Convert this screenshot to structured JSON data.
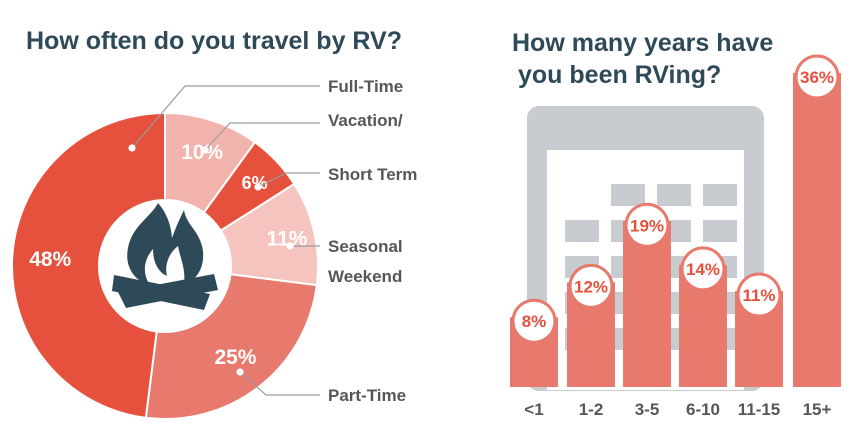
{
  "colors": {
    "title": "#2e4a59",
    "label": "#55585a",
    "red": "#e5513d",
    "bar": "#e77a6d",
    "calendar": "#c8ccd0",
    "icon": "#2e4a59"
  },
  "icons": {
    "campfire": "campfire-icon",
    "calendar": "calendar-icon"
  },
  "chart_data": [
    {
      "type": "pie",
      "title": "How often do you travel by RV?",
      "slices": [
        {
          "label": "Full-Time",
          "value": 10,
          "value_label": "10%",
          "color": "#f2b3ad"
        },
        {
          "label": "Vacation/ Short Term",
          "value": 6,
          "value_label": "6%",
          "color": "#e5513d"
        },
        {
          "label": "Seasonal Weekend",
          "value": 11,
          "value_label": "11%",
          "color": "#f6c4be"
        },
        {
          "label": "Part-Time",
          "value": 25,
          "value_label": "25%",
          "color": "#e77a6d"
        },
        {
          "label": "",
          "value": 48,
          "value_label": "48%",
          "color": "#e5513d"
        }
      ],
      "callouts": [
        "Full-Time",
        "Vacation/",
        "Short Term",
        "Seasonal",
        "Weekend",
        "Part-Time"
      ]
    },
    {
      "type": "bar",
      "title_lines": [
        "How many years have",
        "you been RVing?"
      ],
      "categories": [
        "<1",
        "1-2",
        "3-5",
        "6-10",
        "11-15",
        "15+"
      ],
      "values": [
        8,
        12,
        19,
        14,
        11,
        36
      ],
      "value_labels": [
        "8%",
        "12%",
        "19%",
        "14%",
        "11%",
        "36%"
      ]
    }
  ]
}
